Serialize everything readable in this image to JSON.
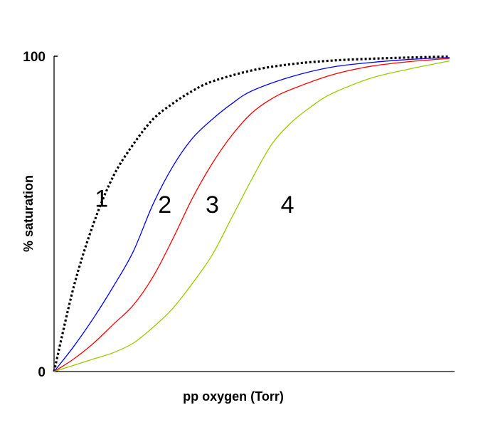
{
  "chart_data": {
    "type": "line",
    "title": "",
    "xlabel": "pp oxygen (Torr)",
    "ylabel": "% saturation",
    "ylim": [
      0,
      100
    ],
    "xlim": [
      0,
      100
    ],
    "yticks": [
      {
        "value": 0,
        "label": "0"
      },
      {
        "value": 100,
        "label": "100"
      }
    ],
    "xticks": [],
    "grid": false,
    "legend": "none",
    "series": [
      {
        "label": "1",
        "label_at": [
          12,
          55
        ],
        "color": "#000000",
        "style": "dotted",
        "x": [
          0,
          5,
          10,
          15,
          20,
          25,
          30,
          35,
          40,
          50,
          60,
          70,
          80,
          90,
          100
        ],
        "y": [
          0,
          27,
          47,
          62,
          72,
          80,
          85,
          89,
          92,
          95.5,
          97.5,
          98.6,
          99.2,
          99.6,
          99.9
        ]
      },
      {
        "label": "2",
        "label_at": [
          28,
          53
        ],
        "color": "#0000ff",
        "style": "solid",
        "x": [
          0,
          5,
          10,
          15,
          20,
          25,
          30,
          35,
          40,
          45,
          50,
          60,
          70,
          80,
          90,
          100
        ],
        "y": [
          0,
          8,
          17,
          27,
          38,
          53,
          65,
          74,
          80,
          85,
          89,
          93.5,
          96.5,
          98,
          99,
          99.6
        ]
      },
      {
        "label": "3",
        "label_at": [
          40,
          53
        ],
        "color": "#ff0000",
        "style": "solid",
        "x": [
          0,
          5,
          10,
          15,
          20,
          25,
          30,
          35,
          40,
          45,
          50,
          55,
          60,
          70,
          80,
          90,
          100
        ],
        "y": [
          0,
          4,
          9,
          15,
          21,
          30,
          42,
          55,
          66,
          75,
          82,
          86.5,
          89.5,
          94,
          96.8,
          98.3,
          99.3
        ]
      },
      {
        "label": "4",
        "label_at": [
          59,
          53
        ],
        "color": "#99cc00",
        "style": "solid",
        "x": [
          0,
          5,
          10,
          15,
          20,
          25,
          30,
          35,
          40,
          45,
          50,
          55,
          60,
          65,
          70,
          80,
          90,
          100
        ],
        "y": [
          0,
          2,
          4,
          6,
          9,
          14,
          20,
          28,
          37,
          49,
          61,
          72,
          79,
          84,
          88,
          93,
          96,
          98.5
        ]
      }
    ]
  }
}
